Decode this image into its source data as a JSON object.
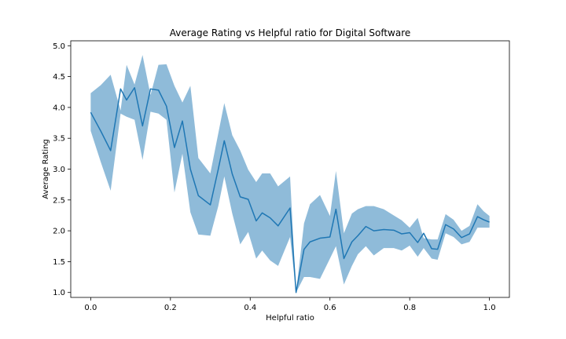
{
  "chart_data": {
    "type": "line",
    "title": "Average Rating vs Helpful ratio for Digital Software",
    "xlabel": "Helpful ratio",
    "ylabel": "Average Rating",
    "xlim": [
      -0.05,
      1.05
    ],
    "ylim": [
      0.92,
      5.08
    ],
    "grid": false,
    "xticks": [
      0.0,
      0.2,
      0.4,
      0.6,
      0.8,
      1.0
    ],
    "xtick_labels": [
      "0.0",
      "0.2",
      "0.4",
      "0.6",
      "0.8",
      "1.0"
    ],
    "yticks": [
      1.0,
      1.5,
      2.0,
      2.5,
      3.0,
      3.5,
      4.0,
      4.5,
      5.0
    ],
    "ytick_labels": [
      "1.0",
      "1.5",
      "2.0",
      "2.5",
      "3.0",
      "3.5",
      "4.0",
      "4.5",
      "5.0"
    ],
    "colors": {
      "line": "#1f77b4",
      "band": "#1f77b4"
    },
    "series": [
      {
        "x": [
          0.0,
          0.025,
          0.05,
          0.075,
          0.09,
          0.11,
          0.13,
          0.15,
          0.17,
          0.19,
          0.21,
          0.23,
          0.25,
          0.27,
          0.3,
          0.32,
          0.335,
          0.355,
          0.375,
          0.395,
          0.415,
          0.43,
          0.45,
          0.47,
          0.5,
          0.515,
          0.535,
          0.55,
          0.575,
          0.6,
          0.615,
          0.635,
          0.655,
          0.67,
          0.69,
          0.71,
          0.735,
          0.76,
          0.78,
          0.8,
          0.82,
          0.835,
          0.855,
          0.87,
          0.89,
          0.91,
          0.93,
          0.95,
          0.97,
          0.985,
          1.0
        ],
        "y": [
          3.92,
          3.62,
          3.3,
          4.3,
          4.12,
          4.32,
          3.7,
          4.3,
          4.28,
          4.02,
          3.35,
          3.78,
          3.0,
          2.57,
          2.42,
          3.0,
          3.46,
          2.92,
          2.55,
          2.51,
          2.16,
          2.29,
          2.21,
          2.08,
          2.37,
          1.0,
          1.7,
          1.82,
          1.88,
          1.9,
          2.35,
          1.55,
          1.82,
          1.92,
          2.07,
          2.0,
          2.02,
          2.01,
          1.95,
          1.97,
          1.81,
          1.96,
          1.71,
          1.7,
          2.1,
          2.03,
          1.89,
          1.95,
          2.23,
          2.18,
          2.14
        ],
        "lower": [
          3.62,
          3.12,
          2.65,
          3.9,
          3.85,
          3.8,
          3.15,
          3.93,
          3.9,
          3.8,
          2.62,
          3.25,
          2.3,
          1.94,
          1.92,
          2.4,
          2.88,
          2.28,
          1.78,
          1.98,
          1.55,
          1.68,
          1.52,
          1.43,
          1.9,
          1.0,
          1.25,
          1.25,
          1.22,
          1.55,
          1.75,
          1.13,
          1.43,
          1.62,
          1.75,
          1.6,
          1.72,
          1.72,
          1.68,
          1.76,
          1.58,
          1.72,
          1.55,
          1.53,
          1.96,
          1.9,
          1.78,
          1.82,
          2.05,
          2.05,
          2.05
        ],
        "upper": [
          4.23,
          4.36,
          4.53,
          3.95,
          4.69,
          4.37,
          4.85,
          4.2,
          4.69,
          4.7,
          4.35,
          4.08,
          4.35,
          3.18,
          2.93,
          3.58,
          4.07,
          3.55,
          3.3,
          2.99,
          2.79,
          2.93,
          2.93,
          2.72,
          2.88,
          1.0,
          2.12,
          2.43,
          2.58,
          2.24,
          2.97,
          1.96,
          2.28,
          2.35,
          2.4,
          2.4,
          2.35,
          2.25,
          2.17,
          2.05,
          2.21,
          1.88,
          1.86,
          1.86,
          2.27,
          2.18,
          2.0,
          2.08,
          2.43,
          2.32,
          2.24
        ]
      }
    ]
  }
}
